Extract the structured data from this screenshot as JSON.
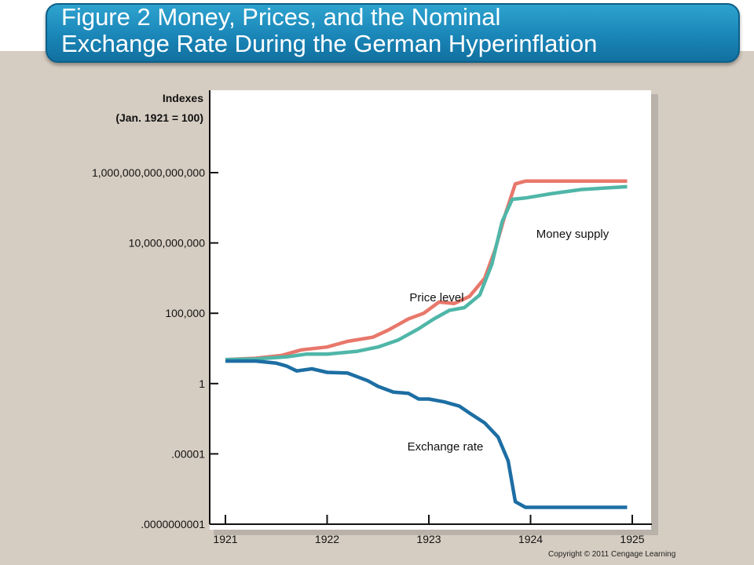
{
  "slide": {
    "title_line1": "Figure 2 Money, Prices, and the Nominal",
    "title_line2": "Exchange Rate During the German Hyperinflation",
    "copyright": "Copyright © 2011 Cengage Learning"
  },
  "chart_data": {
    "type": "line",
    "ylabel_line1": "Indexes",
    "ylabel_line2": "(Jan. 1921 = 100)",
    "y_scale": "log",
    "y_ticks": [
      {
        "value": 1e-10,
        "label": ".0000000001"
      },
      {
        "value": 1e-05,
        "label": ".00001"
      },
      {
        "value": 1,
        "label": "1"
      },
      {
        "value": 100000.0,
        "label": "100,000"
      },
      {
        "value": 10000000000.0,
        "label": "10,000,000,000"
      },
      {
        "value": 1000000000000000.0,
        "label": "1,000,000,000,000,000"
      }
    ],
    "x_ticks": [
      1921,
      1922,
      1923,
      1924,
      1925
    ],
    "xlim": [
      1921,
      1925
    ],
    "ylim_log10": [
      -10,
      17
    ],
    "grid": false,
    "series": [
      {
        "name": "Price level",
        "color": "#e8776b",
        "points": [
          [
            1921.0,
            1.7
          ],
          [
            1921.3,
            1.8
          ],
          [
            1921.55,
            2.0
          ],
          [
            1921.75,
            2.4
          ],
          [
            1922.0,
            2.6
          ],
          [
            1922.2,
            3.0
          ],
          [
            1922.45,
            3.3
          ],
          [
            1922.6,
            3.8
          ],
          [
            1922.8,
            4.6
          ],
          [
            1922.95,
            5.0
          ],
          [
            1923.1,
            5.8
          ],
          [
            1923.25,
            5.7
          ],
          [
            1923.4,
            6.2
          ],
          [
            1923.55,
            7.5
          ],
          [
            1923.65,
            9.5
          ],
          [
            1923.75,
            12.0
          ],
          [
            1923.85,
            14.2
          ],
          [
            1923.95,
            14.4
          ],
          [
            1924.2,
            14.4
          ],
          [
            1924.5,
            14.4
          ],
          [
            1924.95,
            14.4
          ]
        ]
      },
      {
        "name": "Money supply",
        "color": "#4fb6a8",
        "points": [
          [
            1921.0,
            1.7
          ],
          [
            1921.3,
            1.75
          ],
          [
            1921.6,
            1.9
          ],
          [
            1921.8,
            2.1
          ],
          [
            1922.0,
            2.1
          ],
          [
            1922.3,
            2.3
          ],
          [
            1922.5,
            2.6
          ],
          [
            1922.7,
            3.1
          ],
          [
            1922.9,
            3.9
          ],
          [
            1923.05,
            4.6
          ],
          [
            1923.2,
            5.2
          ],
          [
            1923.35,
            5.4
          ],
          [
            1923.5,
            6.3
          ],
          [
            1923.62,
            8.5
          ],
          [
            1923.72,
            11.5
          ],
          [
            1923.82,
            13.1
          ],
          [
            1923.95,
            13.2
          ],
          [
            1924.2,
            13.5
          ],
          [
            1924.5,
            13.8
          ],
          [
            1924.95,
            14.0
          ]
        ]
      },
      {
        "name": "Exchange rate",
        "color": "#1d6ea3",
        "points": [
          [
            1921.0,
            1.6
          ],
          [
            1921.3,
            1.6
          ],
          [
            1921.5,
            1.45
          ],
          [
            1921.6,
            1.25
          ],
          [
            1921.7,
            0.9
          ],
          [
            1921.85,
            1.05
          ],
          [
            1922.0,
            0.8
          ],
          [
            1922.2,
            0.75
          ],
          [
            1922.4,
            0.2
          ],
          [
            1922.5,
            -0.2
          ],
          [
            1922.65,
            -0.6
          ],
          [
            1922.8,
            -0.7
          ],
          [
            1922.9,
            -1.1
          ],
          [
            1923.0,
            -1.1
          ],
          [
            1923.15,
            -1.3
          ],
          [
            1923.3,
            -1.6
          ],
          [
            1923.4,
            -2.1
          ],
          [
            1923.55,
            -2.8
          ],
          [
            1923.68,
            -3.8
          ],
          [
            1923.78,
            -5.5
          ],
          [
            1923.85,
            -8.4
          ],
          [
            1923.95,
            -8.8
          ],
          [
            1924.5,
            -8.8
          ],
          [
            1924.95,
            -8.8
          ]
        ]
      }
    ]
  }
}
